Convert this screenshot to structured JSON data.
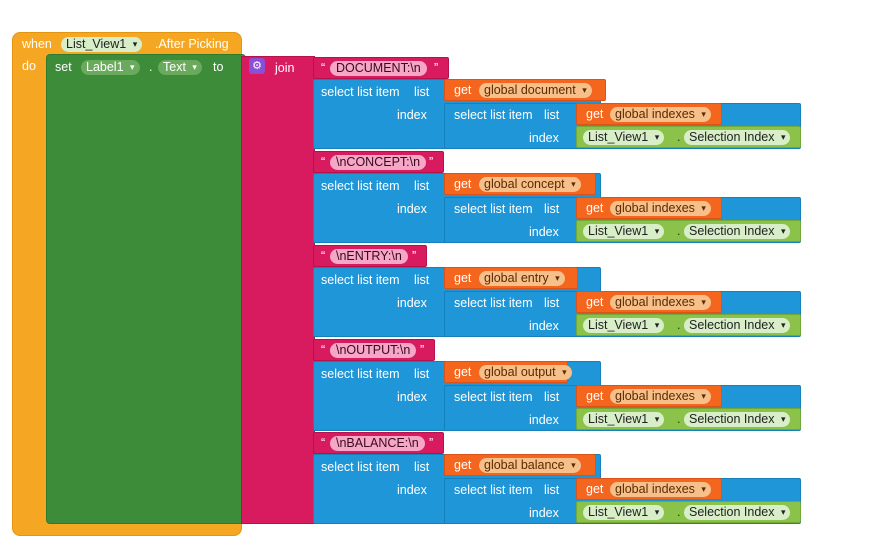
{
  "event": {
    "when": "when",
    "component": "List_View1",
    "event_name": ".After Picking",
    "do": "do"
  },
  "setter": {
    "set": "set",
    "component": "Label1",
    "dot": ".",
    "property": "Text",
    "to": "to"
  },
  "join": {
    "label": "join"
  },
  "labels": {
    "select_list_item": "select list item",
    "list": "list",
    "index": "index",
    "get": "get"
  },
  "sections": [
    {
      "text": "DOCUMENT:\\n",
      "var": "global document",
      "index_var": "global indexes",
      "component": "List_View1",
      "prop": "Selection Index"
    },
    {
      "text": "\\nCONCEPT:\\n",
      "var": "global concept",
      "index_var": "global indexes",
      "component": "List_View1",
      "prop": "Selection Index"
    },
    {
      "text": "\\nENTRY:\\n",
      "var": "global entry",
      "index_var": "global indexes",
      "component": "List_View1",
      "prop": "Selection Index"
    },
    {
      "text": "\\nOUTPUT:\\n",
      "var": "global output",
      "index_var": "global indexes",
      "component": "List_View1",
      "prop": "Selection Index"
    },
    {
      "text": "\\nBALANCE:\\n",
      "var": "global balance",
      "index_var": "global indexes",
      "component": "List_View1",
      "prop": "Selection Index"
    }
  ]
}
